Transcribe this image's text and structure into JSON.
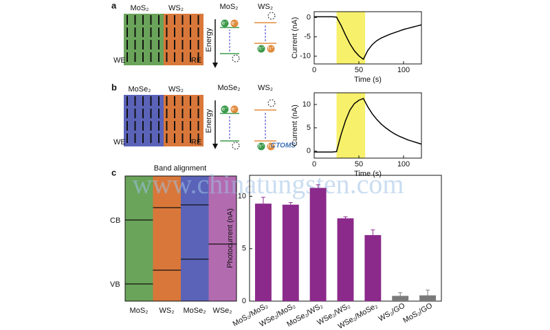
{
  "panels": {
    "a": {
      "letter": "a",
      "left": "MoS₂",
      "right": "WS₂",
      "we": "WE",
      "re": "RE",
      "energy": "Energy",
      "left_band": "MoS₂",
      "right_band": "WS₂",
      "e1": "e⁻",
      "e2": "e⁻",
      "h1": "h⁺",
      "h2": "h⁺"
    },
    "b": {
      "letter": "b",
      "left": "MoSe₂",
      "right": "WS₂",
      "we": "WE",
      "re": "RE",
      "energy": "Energy",
      "left_band": "MoSe₂",
      "right_band": "WS₂",
      "e1": "e⁻",
      "e2": "e⁻",
      "h1": "h⁺",
      "h2": "h⁺"
    },
    "c": {
      "letter": "c",
      "title": "Band alignment",
      "cb": "CB",
      "vb": "VB",
      "materials": [
        "MoS₂",
        "WS₂",
        "MoSe₂",
        "WSe₂"
      ]
    }
  },
  "watermark": {
    "site": "www.chinatungsten.com",
    "logo": "CTOMS"
  },
  "chart_data": [
    {
      "type": "line",
      "xlabel": "Time (s)",
      "ylabel": "Current (nA)",
      "x": [
        0,
        5,
        10,
        15,
        20,
        25,
        30,
        35,
        40,
        45,
        50,
        55,
        60,
        65,
        70,
        75,
        80,
        85,
        90,
        95,
        100,
        105,
        110,
        115,
        120
      ],
      "series": [
        {
          "color": "#000000",
          "values": [
            0.2,
            0.2,
            0.2,
            0.2,
            0.2,
            0.1,
            -2,
            -4.5,
            -6.8,
            -8.6,
            -9.9,
            -10.8,
            -8.5,
            -7,
            -6,
            -5.3,
            -4.8,
            -4.3,
            -3.9,
            -3.5,
            -3.1,
            -2.8,
            -2.5,
            -2.2,
            -1.9
          ]
        }
      ],
      "shaded_span": [
        25,
        57
      ],
      "shade_color": "#f7f06b",
      "xlim": [
        0,
        120
      ],
      "xticks": [
        0,
        50,
        100
      ],
      "ylim": [
        -12,
        1.5
      ],
      "yticks": [
        -10,
        -5,
        0
      ]
    },
    {
      "type": "line",
      "xlabel": "Time (s)",
      "ylabel": "Current (nA)",
      "x": [
        0,
        5,
        10,
        15,
        20,
        25,
        30,
        35,
        40,
        45,
        50,
        55,
        60,
        65,
        70,
        75,
        80,
        85,
        90,
        95,
        100,
        105,
        110,
        115,
        120
      ],
      "series": [
        {
          "color": "#000000",
          "values": [
            -0.2,
            -0.2,
            -0.2,
            -0.2,
            -0.2,
            -0.1,
            3.5,
            6.5,
            8.8,
            10.2,
            10.9,
            11.3,
            9.5,
            8,
            6.8,
            5.8,
            5,
            4.3,
            3.7,
            3.2,
            2.8,
            2.4,
            2.1,
            1.8,
            1.5
          ]
        }
      ],
      "shaded_span": [
        25,
        57
      ],
      "shade_color": "#f7f06b",
      "xlim": [
        0,
        120
      ],
      "xticks": [
        0,
        50,
        100
      ],
      "ylim": [
        -1.5,
        12.5
      ],
      "yticks": [
        0,
        5,
        10
      ]
    },
    {
      "type": "bar",
      "ylabel": "Photocurrent (nA)",
      "categories": [
        "MoS₂/MoS₂",
        "WSe₂/MoS₂",
        "MoSe₂/WS₂",
        "WSe₂/WS₂",
        "WSe₂/MoSe₂",
        "WS₂/GO",
        "MoS₂/GO"
      ],
      "values": [
        9.3,
        9.2,
        10.8,
        7.9,
        6.3,
        0.5,
        0.55
      ],
      "errors": [
        0.6,
        0.2,
        0.3,
        0.15,
        0.5,
        0.3,
        0.5
      ],
      "colors": [
        "#8b2a8b",
        "#8b2a8b",
        "#8b2a8b",
        "#8b2a8b",
        "#8b2a8b",
        "#7a7a7a",
        "#7a7a7a"
      ],
      "ylim": [
        0,
        12
      ],
      "yticks": [
        0,
        5,
        10
      ]
    }
  ]
}
